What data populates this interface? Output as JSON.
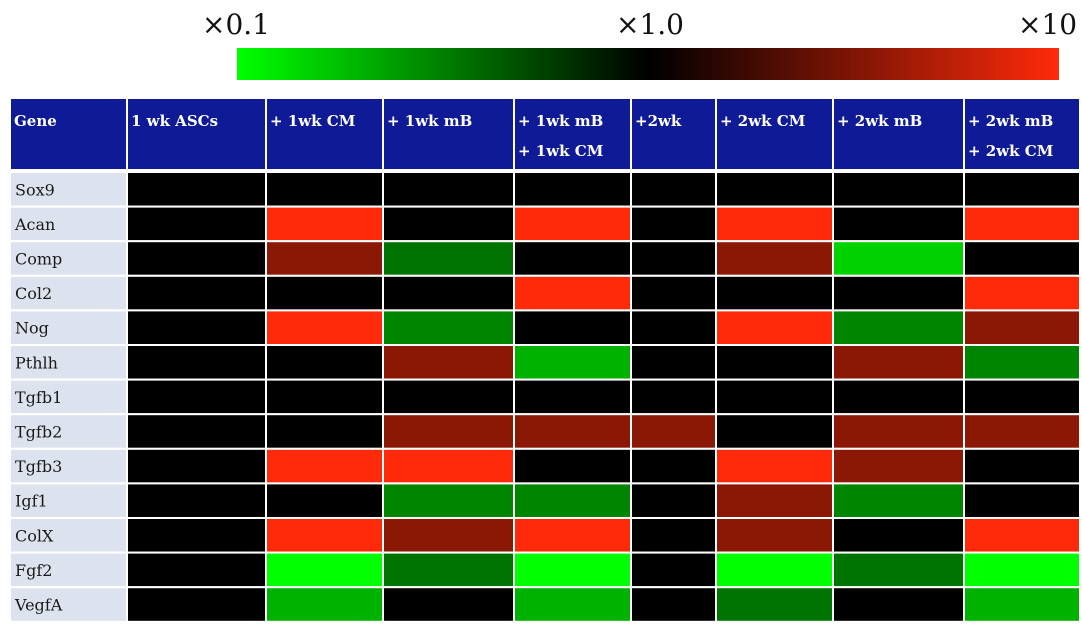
{
  "chart_data": {
    "type": "heatmap",
    "colorbar": {
      "tick_labels": [
        "×0.1",
        "×1.0",
        "×10"
      ],
      "colors": [
        "#00ff00",
        "#000000",
        "#ff2a0a"
      ]
    },
    "corner_label": "Gene",
    "columns": [
      [
        "1 wk ASCs"
      ],
      [
        "+ 1wk CM"
      ],
      [
        "+ 1wk mB"
      ],
      [
        "+ 1wk mB",
        "+ 1wk CM"
      ],
      [
        "+2wk"
      ],
      [
        "+ 2wk CM"
      ],
      [
        "+ 2wk mB"
      ],
      [
        "+ 2wk mB",
        "+ 2wk CM"
      ]
    ],
    "rows": [
      "Sox9",
      "Acan",
      "Comp",
      "Col2",
      "Nog",
      "Pthlh",
      "Tgfb1",
      "Tgfb2",
      "Tgfb3",
      "Igf1",
      "ColX",
      "Fgf2",
      "VegfA"
    ],
    "values": [
      [
        1,
        1,
        1,
        1,
        1,
        1,
        1,
        1
      ],
      [
        1,
        10,
        1,
        10,
        1,
        10,
        1,
        10
      ],
      [
        1,
        3.5,
        0.35,
        1,
        1,
        3.5,
        0.15,
        1
      ],
      [
        1,
        1,
        1,
        10,
        1,
        1,
        1,
        10
      ],
      [
        1,
        10,
        0.3,
        1,
        1,
        10,
        0.3,
        3.5
      ],
      [
        1,
        1,
        3.5,
        0.2,
        1,
        1,
        3.5,
        0.3
      ],
      [
        1,
        1,
        1,
        1,
        1,
        1,
        1,
        1
      ],
      [
        1,
        1,
        3.5,
        3.5,
        3.5,
        1,
        3.5,
        3.5
      ],
      [
        1,
        10,
        10,
        1,
        1,
        10,
        3.5,
        1
      ],
      [
        1,
        1,
        0.3,
        0.3,
        1,
        3.5,
        0.3,
        1
      ],
      [
        1,
        10,
        3.5,
        10,
        1,
        3.5,
        1,
        10
      ],
      [
        1,
        0.1,
        0.35,
        0.1,
        1,
        0.1,
        0.35,
        0.1
      ],
      [
        1,
        0.2,
        1,
        0.2,
        1,
        0.35,
        1,
        0.2
      ]
    ],
    "scale": "log",
    "vmin": 0.1,
    "vmax": 10
  },
  "colors": {
    "header_bg": "#0f1a96",
    "header_border": "#ffffff",
    "row_label_bg": "#dde3ee",
    "grid_line": "#ffffff"
  }
}
